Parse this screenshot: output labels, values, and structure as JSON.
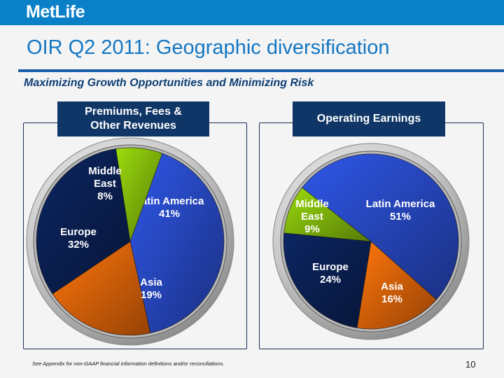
{
  "header": {
    "logo_text": "MetLife",
    "title": "OIR Q2 2011: Geographic diversification",
    "subtitle": "Maximizing Growth Opportunities and Minimizing Risk"
  },
  "footer": {
    "note": "See Appendix for non-GAAP financial information definitions and/or reconciliations.",
    "page_number": "10"
  },
  "colors": {
    "latin_america": "#2a4ed0",
    "asia": "#f26a0a",
    "europe": "#0b2258",
    "middle_east": "#8bc40c"
  },
  "chart_data": [
    {
      "type": "pie",
      "title_lines": [
        "Premiums, Fees &",
        "Other Revenues"
      ],
      "slices": [
        {
          "name": "Latin America",
          "value": 41,
          "label": "41%"
        },
        {
          "name": "Asia",
          "value": 19,
          "label": "19%"
        },
        {
          "name": "Europe",
          "value": 32,
          "label": "32%"
        },
        {
          "name": "Middle East",
          "value": 8,
          "label": "8%"
        }
      ]
    },
    {
      "type": "pie",
      "title_lines": [
        "Operating Earnings"
      ],
      "slices": [
        {
          "name": "Latin America",
          "value": 51,
          "label": "51%"
        },
        {
          "name": "Asia",
          "value": 16,
          "label": "16%"
        },
        {
          "name": "Europe",
          "value": 24,
          "label": "24%"
        },
        {
          "name": "Middle East",
          "value": 9,
          "label": "9%"
        }
      ]
    }
  ]
}
